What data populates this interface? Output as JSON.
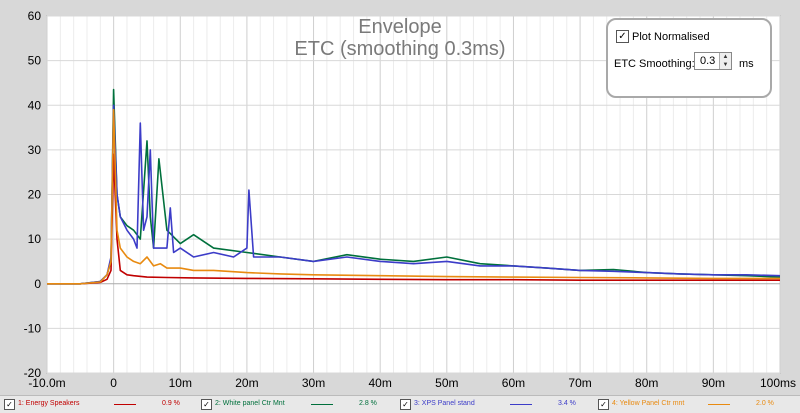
{
  "chart_data": {
    "type": "line",
    "title": "Envelope",
    "subtitle": "ETC (smoothing 0.3ms)",
    "xlabel": "",
    "ylabel": "",
    "xlim": [
      -10,
      100
    ],
    "ylim": [
      -20,
      60
    ],
    "x_ticks": [
      -10,
      0,
      10,
      20,
      30,
      40,
      50,
      60,
      70,
      80,
      90,
      100
    ],
    "x_tick_labels": [
      "-10.0m",
      "0",
      "10m",
      "20m",
      "30m",
      "40m",
      "50m",
      "60m",
      "70m",
      "80m",
      "90m",
      "100ms"
    ],
    "y_ticks": [
      -20,
      -10,
      0,
      10,
      20,
      30,
      40,
      50,
      60
    ],
    "y_tick_labels": [
      "-20",
      "-10",
      "0",
      "10",
      "20",
      "30",
      "40",
      "50",
      "60"
    ],
    "grid": true,
    "legend": "bottom",
    "series": [
      {
        "name": "1: Energy Speakers",
        "color": "#c00000",
        "x": [
          -10,
          -5,
          -2,
          -1,
          -0.4,
          0,
          0.5,
          1,
          2,
          3,
          5,
          8,
          12,
          20,
          30,
          40,
          50,
          60,
          70,
          80,
          90,
          100
        ],
        "values": [
          0,
          0,
          0.3,
          1,
          3,
          29,
          10,
          3,
          2,
          1.8,
          1.5,
          1.4,
          1.3,
          1.2,
          1.1,
          1.0,
          0.9,
          0.9,
          0.8,
          0.8,
          0.8,
          0.8
        ]
      },
      {
        "name": "2: White panel Ctr Mnt",
        "color": "#00703c",
        "x": [
          -10,
          -5,
          -2,
          -1,
          -0.4,
          0,
          0.5,
          1,
          2,
          3,
          4,
          5,
          5.5,
          6,
          6.8,
          8,
          10,
          12,
          15,
          20,
          25,
          30,
          35,
          40,
          45,
          50,
          55,
          60,
          65,
          70,
          75,
          80,
          85,
          90,
          95,
          100
        ],
        "values": [
          0,
          0,
          0.5,
          2,
          5,
          43.5,
          20,
          15,
          13,
          12,
          10,
          32,
          15,
          8,
          28,
          12,
          9,
          11,
          8,
          7,
          6,
          5,
          6.5,
          5.5,
          5,
          6,
          4.5,
          4,
          3.5,
          3,
          3.2,
          2.5,
          2.2,
          2,
          1.8,
          1.5
        ]
      },
      {
        "name": "3: XPS Panel stand",
        "color": "#3c3cc8",
        "x": [
          -10,
          -5,
          -2,
          -1,
          -0.4,
          0,
          0.5,
          1,
          2,
          3,
          3.5,
          4,
          4.5,
          5,
          5.5,
          6,
          8,
          8.5,
          9,
          10,
          12,
          15,
          18,
          20,
          20.3,
          21,
          25,
          30,
          35,
          40,
          45,
          50,
          55,
          60,
          65,
          70,
          75,
          80,
          85,
          90,
          95,
          100
        ],
        "values": [
          0,
          0,
          0.5,
          2,
          6,
          40,
          20,
          15,
          12,
          10,
          8,
          36,
          12,
          15,
          30,
          8,
          8,
          17,
          7,
          8,
          6,
          7,
          6,
          8,
          21,
          6,
          6,
          5,
          6,
          5,
          4.5,
          5,
          4,
          4,
          3.5,
          3,
          2.8,
          2.5,
          2.2,
          2,
          2,
          1.8
        ]
      },
      {
        "name": "4: Yellow Panel Ctr mnt",
        "color": "#e88a10",
        "x": [
          -10,
          -5,
          -2,
          -1,
          -0.4,
          0,
          0.5,
          1,
          2,
          3,
          4,
          5,
          6,
          7,
          8,
          10,
          12,
          15,
          20,
          25,
          30,
          40,
          50,
          60,
          70,
          80,
          90,
          100
        ],
        "values": [
          0,
          0,
          0.4,
          2,
          5,
          39,
          12,
          8,
          6,
          5,
          4.5,
          6,
          4,
          4.5,
          3.5,
          3.5,
          3,
          3,
          2.5,
          2.2,
          2,
          1.8,
          1.6,
          1.5,
          1.4,
          1.3,
          1.2,
          1.2
        ]
      }
    ]
  },
  "controls": {
    "plot_normalised_label": "Plot Normalised",
    "plot_normalised_checked": "✓",
    "etc_smoothing_label": "ETC Smoothing:",
    "etc_smoothing_value": "0.3",
    "etc_smoothing_unit": "ms",
    "spin_up": "▲",
    "spin_down": "▼"
  },
  "legend": [
    {
      "name": "1: Energy Speakers",
      "value": "0.9 %",
      "color": "#c00000",
      "check": "✓"
    },
    {
      "name": "2: White panel Ctr Mnt",
      "value": "2.8 %",
      "color": "#00703c",
      "check": "✓"
    },
    {
      "name": "3: XPS Panel stand",
      "value": "3.4 %",
      "color": "#3c3cc8",
      "check": "✓"
    },
    {
      "name": "4: Yellow Panel Ctr mnt",
      "value": "2.0 %",
      "color": "#e88a10",
      "check": "✓"
    }
  ]
}
